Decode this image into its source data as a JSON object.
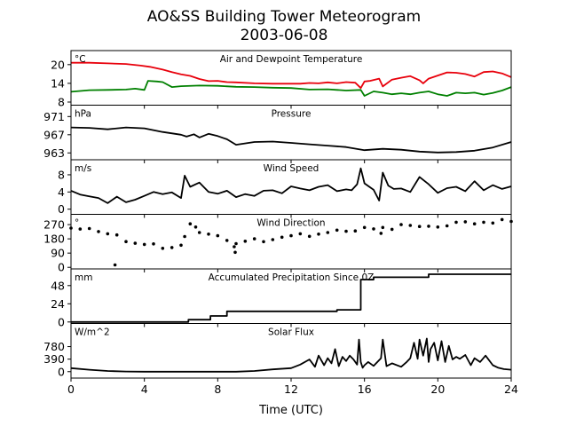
{
  "figure": {
    "title_line1": "AO&SS Building Tower Meteorogram",
    "title_line2": "2003-06-08",
    "xlabel": "Time (UTC)",
    "xticks": [
      0,
      4,
      8,
      12,
      16,
      20,
      24
    ],
    "xlim": [
      0,
      24
    ]
  },
  "chart_data": [
    {
      "type": "line",
      "title": "Air and Dewpoint Temperature",
      "ylabel": "°C",
      "ylim": [
        7,
        24.5
      ],
      "yticks": [
        8,
        14,
        20
      ],
      "series": [
        {
          "color": "#e8000b",
          "x": [
            0,
            1,
            2,
            3,
            3.8,
            4.3,
            5,
            5.5,
            6,
            6.5,
            7,
            7.5,
            8,
            8.5,
            9,
            10,
            11,
            12,
            12.5,
            13,
            13.5,
            14,
            14.5,
            15,
            15.5,
            15.8,
            16,
            16.3,
            16.8,
            17,
            17.5,
            18,
            18.5,
            19,
            19.2,
            19.5,
            20,
            20.5,
            21,
            21.5,
            22,
            22.5,
            23,
            23.5,
            24
          ],
          "y": [
            20.6,
            20.6,
            20.4,
            20.2,
            19.7,
            19.3,
            18.4,
            17.6,
            16.9,
            16.4,
            15.4,
            14.7,
            14.8,
            14.4,
            14.3,
            14.0,
            13.9,
            13.9,
            13.9,
            14.1,
            14.0,
            14.3,
            14.0,
            14.4,
            14.2,
            12.5,
            14.6,
            14.8,
            15.5,
            13.0,
            15.2,
            15.8,
            16.3,
            15.0,
            14.0,
            15.5,
            16.5,
            17.5,
            17.4,
            17.0,
            16.2,
            17.6,
            17.8,
            17.2,
            16.0
          ]
        },
        {
          "color": "#008000",
          "x": [
            0,
            1,
            2,
            3,
            3.5,
            4,
            4.2,
            4.7,
            5,
            5.5,
            6,
            7,
            8,
            9,
            10,
            11,
            12,
            13,
            14,
            14.5,
            15,
            15.8,
            16,
            16.5,
            17,
            17.5,
            18,
            18.5,
            19,
            19.5,
            20,
            20.5,
            21,
            21.5,
            22,
            22.5,
            23,
            23.5,
            24
          ],
          "y": [
            11.3,
            11.8,
            11.9,
            12.0,
            12.3,
            11.9,
            14.8,
            14.6,
            14.4,
            12.8,
            13.1,
            13.3,
            13.2,
            12.9,
            12.8,
            12.6,
            12.5,
            12.0,
            12.1,
            11.9,
            11.7,
            11.9,
            10.0,
            11.4,
            11.0,
            10.5,
            10.8,
            10.5,
            11.0,
            11.4,
            10.5,
            10.0,
            11.0,
            10.8,
            11.0,
            10.4,
            10.9,
            11.7,
            12.8
          ]
        }
      ]
    },
    {
      "type": "line",
      "title": "Pressure",
      "ylabel": "hPa",
      "ylim": [
        961.5,
        973.5
      ],
      "yticks": [
        963,
        967,
        971
      ],
      "series": [
        {
          "color": "#000000",
          "x": [
            0,
            1,
            2,
            3,
            3.5,
            4,
            5,
            6,
            6.3,
            6.7,
            7,
            7.5,
            8,
            8.5,
            9,
            10,
            11,
            12,
            13,
            14,
            15,
            16,
            17,
            18,
            19,
            20,
            21,
            22,
            23,
            24
          ],
          "y": [
            968.6,
            968.5,
            968.2,
            968.6,
            968.5,
            968.4,
            967.6,
            967.0,
            966.6,
            967.1,
            966.4,
            967.2,
            966.7,
            966.0,
            964.8,
            965.4,
            965.5,
            965.2,
            964.9,
            964.6,
            964.3,
            963.6,
            963.9,
            963.7,
            963.3,
            963.1,
            963.2,
            963.5,
            964.2,
            965.4
          ]
        }
      ]
    },
    {
      "type": "line",
      "title": "Wind Speed",
      "ylabel": "m/s",
      "ylim": [
        -1.2,
        11.5
      ],
      "yticks": [
        0,
        4,
        8
      ],
      "series": [
        {
          "color": "#000000",
          "x": [
            0,
            0.5,
            1,
            1.5,
            2,
            2.5,
            3,
            3.5,
            4,
            4.5,
            5,
            5.5,
            6,
            6.2,
            6.5,
            7,
            7.5,
            8,
            8.5,
            9,
            9.5,
            10,
            10.5,
            11,
            11.5,
            12,
            12.5,
            13,
            13.5,
            14,
            14.5,
            15,
            15.3,
            15.6,
            15.8,
            16,
            16.5,
            16.8,
            17,
            17.3,
            17.6,
            18,
            18.5,
            19,
            19.5,
            20,
            20.5,
            21,
            21.5,
            22,
            22.5,
            23,
            23.5,
            24
          ],
          "y": [
            4.3,
            3.4,
            3.0,
            2.6,
            1.4,
            2.9,
            1.6,
            2.2,
            3.1,
            4.0,
            3.5,
            3.9,
            2.6,
            7.8,
            5.2,
            6.2,
            4.0,
            3.6,
            4.3,
            2.8,
            3.5,
            3.1,
            4.3,
            4.4,
            3.7,
            5.3,
            4.8,
            4.4,
            5.2,
            5.6,
            4.2,
            4.6,
            4.4,
            5.8,
            9.5,
            6.0,
            4.5,
            2.0,
            8.5,
            5.5,
            4.7,
            4.8,
            4.0,
            7.5,
            5.8,
            3.8,
            4.9,
            5.2,
            4.2,
            6.5,
            4.4,
            5.6,
            4.7,
            5.3
          ]
        }
      ]
    },
    {
      "type": "scatter",
      "title": "Wind Direction",
      "ylabel": "°",
      "ylim": [
        -10,
        335
      ],
      "yticks": [
        0,
        90,
        180,
        270
      ],
      "series": [
        {
          "color": "#000000",
          "x": [
            0,
            0.5,
            1,
            1.5,
            2,
            2.5,
            3,
            3.5,
            4,
            4.5,
            5,
            5.5,
            6,
            6.2,
            6.5,
            6.8,
            7,
            7.5,
            8,
            8.5,
            9,
            9.5,
            10,
            10.5,
            11,
            11.5,
            12,
            12.5,
            13,
            13.5,
            14,
            14.5,
            15,
            15.5,
            16,
            16.5,
            17,
            17.5,
            18,
            18.5,
            19,
            19.5,
            20,
            20.5,
            21,
            21.5,
            22,
            22.5,
            23,
            23.5,
            24
          ],
          "y": [
            248,
            242,
            245,
            226,
            212,
            205,
            163,
            152,
            145,
            148,
            120,
            125,
            140,
            195,
            275,
            255,
            220,
            210,
            200,
            170,
            150,
            165,
            180,
            162,
            175,
            190,
            200,
            212,
            196,
            210,
            220,
            235,
            228,
            230,
            252,
            243,
            252,
            240,
            270,
            265,
            258,
            260,
            255,
            262,
            285,
            288,
            275,
            285,
            280,
            302,
            290
          ]
        },
        {
          "color": "#000000",
          "x": [
            2.4,
            8.9,
            8.95,
            16.9
          ],
          "y": [
            15,
            130,
            95,
            215
          ]
        }
      ]
    },
    {
      "type": "line",
      "title": "Accumulated Precipitation Since 0Z",
      "ylabel": "mm",
      "ylim": [
        -2,
        70
      ],
      "yticks": [
        0,
        24,
        48
      ],
      "series": [
        {
          "color": "#000000",
          "x": [
            0,
            6.4,
            6.4,
            7.6,
            7.6,
            8.5,
            8.5,
            14.5,
            14.5,
            15.8,
            15.8,
            16.5,
            16.5,
            19.5,
            19.5,
            24
          ],
          "y": [
            0,
            0,
            3,
            3,
            8,
            8,
            14,
            14,
            16,
            16,
            56,
            56,
            59,
            59,
            63,
            63
          ]
        }
      ]
    },
    {
      "type": "line",
      "title": "Solar Flux",
      "ylabel": "W/m^2",
      "ylim": [
        -200,
        1500
      ],
      "yticks": [
        0,
        390,
        780
      ],
      "series": [
        {
          "color": "#000000",
          "x": [
            0,
            1,
            2,
            3,
            4,
            5,
            6,
            7,
            8,
            9,
            10,
            11,
            12,
            12.5,
            13,
            13.3,
            13.5,
            13.8,
            14,
            14.2,
            14.4,
            14.6,
            14.8,
            15,
            15.2,
            15.4,
            15.6,
            15.7,
            15.8,
            15.9,
            16,
            16.2,
            16.5,
            16.9,
            17,
            17.2,
            17.5,
            18,
            18.3,
            18.5,
            18.7,
            18.9,
            19,
            19.2,
            19.4,
            19.5,
            19.6,
            19.8,
            20,
            20.2,
            20.4,
            20.6,
            20.8,
            21,
            21.2,
            21.5,
            21.8,
            22,
            22.3,
            22.6,
            23,
            23.3,
            23.6,
            24
          ],
          "y": [
            110,
            60,
            20,
            5,
            0,
            0,
            0,
            0,
            0,
            0,
            20,
            70,
            110,
            220,
            380,
            150,
            500,
            200,
            420,
            260,
            700,
            170,
            460,
            330,
            500,
            380,
            220,
            1000,
            300,
            120,
            200,
            300,
            180,
            420,
            1000,
            170,
            260,
            150,
            300,
            420,
            900,
            400,
            1000,
            500,
            1030,
            300,
            700,
            900,
            350,
            950,
            300,
            800,
            380,
            460,
            400,
            520,
            200,
            420,
            300,
            500,
            200,
            120,
            80,
            60
          ]
        }
      ]
    }
  ]
}
